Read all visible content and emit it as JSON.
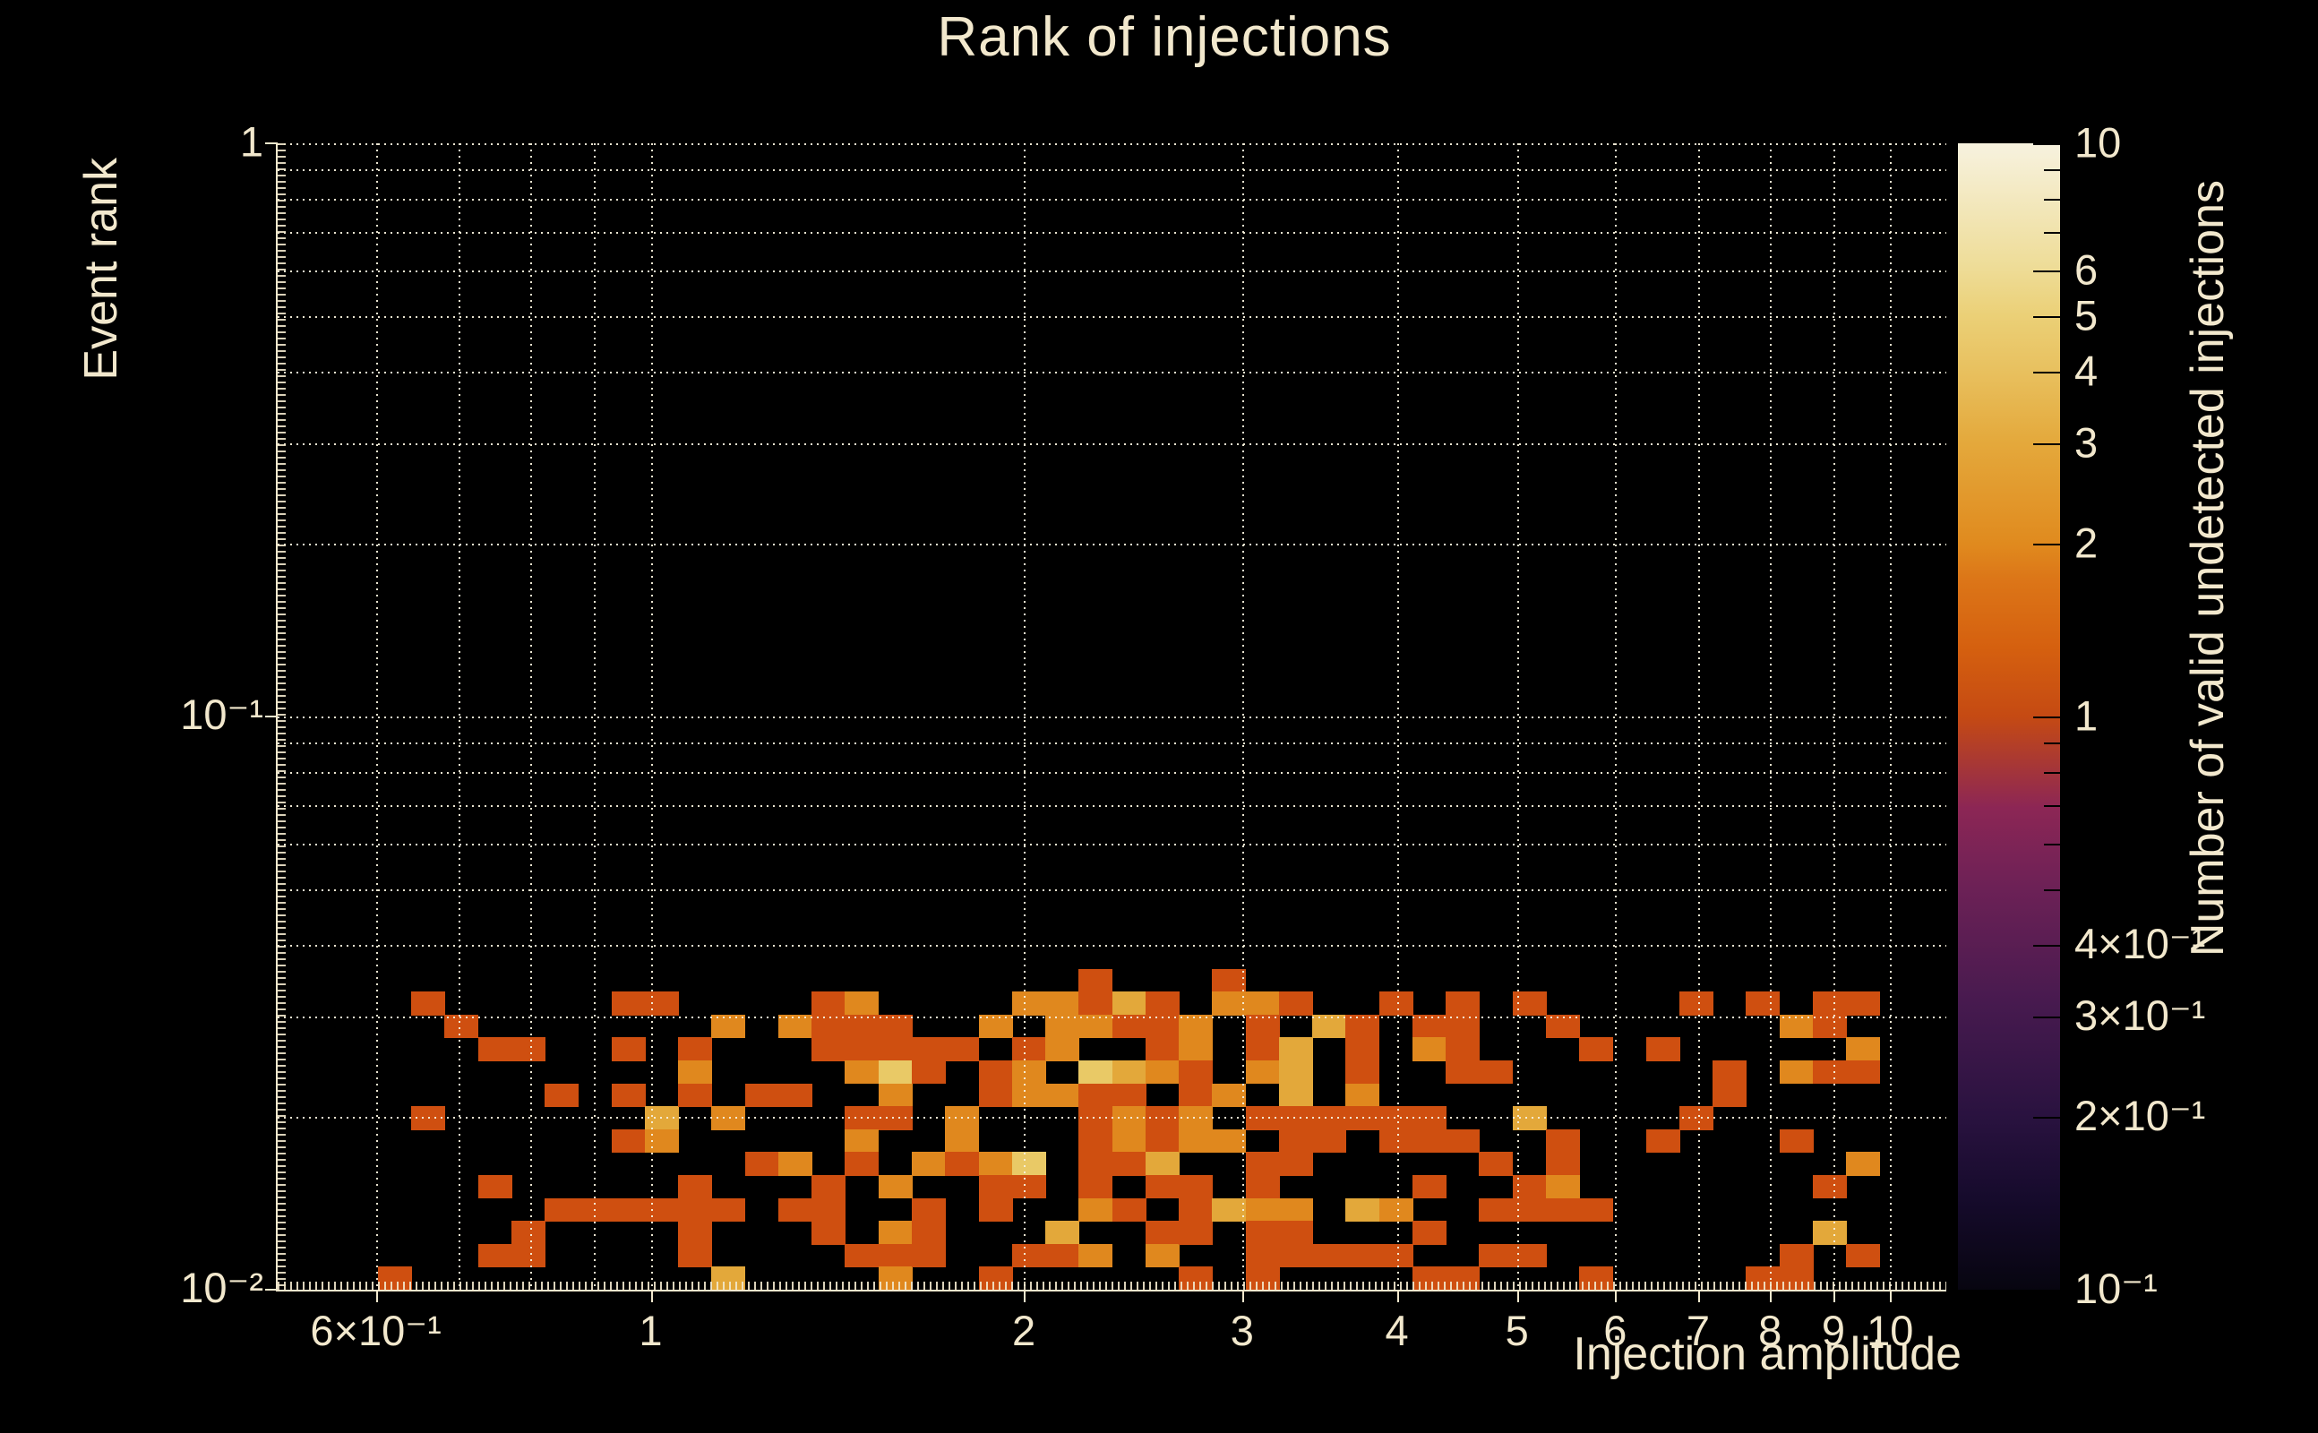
{
  "figure": {
    "bg": "#000000",
    "text_color": "#f2e8cd"
  },
  "chart_data": {
    "type": "heatmap",
    "title": "Rank of injections",
    "xlabel": "Injection amplitude",
    "ylabel": "Event rank",
    "colorbar_label": "Number of valid undetected injections",
    "x_scale": "log",
    "y_scale": "log",
    "z_scale": "log",
    "x_range": [
      0.5,
      11.1
    ],
    "y_range": [
      0.01,
      1.0
    ],
    "z_range": [
      0.1,
      10
    ],
    "grid_bins": 50,
    "grid": "dotted",
    "legend_position": "right-colorbar",
    "x_ticks": [
      {
        "v": 0.6,
        "label": "6×10⁻¹"
      },
      {
        "v": 1,
        "label": "1"
      },
      {
        "v": 2,
        "label": "2"
      },
      {
        "v": 3,
        "label": "3"
      },
      {
        "v": 4,
        "label": "4"
      },
      {
        "v": 5,
        "label": "5"
      },
      {
        "v": 6,
        "label": "6"
      },
      {
        "v": 7,
        "label": "7"
      },
      {
        "v": 8,
        "label": "8"
      },
      {
        "v": 9,
        "label": "9"
      },
      {
        "v": 10,
        "label": "10"
      }
    ],
    "y_ticks": [
      {
        "v": 1,
        "label": "1"
      },
      {
        "v": 0.1,
        "label": "10⁻¹"
      },
      {
        "v": 0.01,
        "label": "10⁻²"
      }
    ],
    "x_gridlines": [
      0.6,
      0.7,
      0.8,
      0.9,
      1,
      2,
      3,
      4,
      5,
      6,
      7,
      8,
      9,
      10
    ],
    "y_gridlines": [
      0.02,
      0.03,
      0.04,
      0.05,
      0.06,
      0.07,
      0.08,
      0.09,
      0.1,
      0.2,
      0.3,
      0.4,
      0.5,
      0.6,
      0.7,
      0.8,
      0.9,
      1
    ],
    "colorbar_ticks": [
      {
        "v": 10,
        "label": "10"
      },
      {
        "v": 6,
        "label": "6"
      },
      {
        "v": 5,
        "label": "5"
      },
      {
        "v": 4,
        "label": "4"
      },
      {
        "v": 3,
        "label": "3"
      },
      {
        "v": 2,
        "label": "2"
      },
      {
        "v": 1,
        "label": "1"
      },
      {
        "v": 0.4,
        "label": "4×10⁻¹"
      },
      {
        "v": 0.3,
        "label": "3×10⁻¹"
      },
      {
        "v": 0.2,
        "label": "2×10⁻¹"
      },
      {
        "v": 0.1,
        "label": "10⁻¹"
      }
    ],
    "colorbar_minor_ticks": [
      9,
      8,
      7,
      0.9,
      0.8,
      0.7,
      0.6,
      0.5
    ],
    "colormap_stops": [
      [
        0.0,
        "#070510"
      ],
      [
        0.08,
        "#160b2c"
      ],
      [
        0.15,
        "#29123f"
      ],
      [
        0.25,
        "#471a4f"
      ],
      [
        0.35,
        "#6c2156"
      ],
      [
        0.42,
        "#8c2655"
      ],
      [
        0.5,
        "#c54a13"
      ],
      [
        0.56,
        "#d5600f"
      ],
      [
        0.62,
        "#dc7618"
      ],
      [
        0.65,
        "#e08a1e"
      ],
      [
        0.74,
        "#e4a93c"
      ],
      [
        0.8,
        "#e8c05e"
      ],
      [
        0.85,
        "#ebd077"
      ],
      [
        0.89,
        "#eedc96"
      ],
      [
        1.0,
        "#f7f2df"
      ]
    ],
    "value_colors": {
      "1": "#cf4f10",
      "2": "#e0881e",
      "3": "#e3a83a",
      "4": "#e9c966"
    },
    "cells_format": [
      "col",
      "row",
      "value"
    ],
    "cells": [
      [
        3,
        0,
        1
      ],
      [
        4,
        12,
        1
      ],
      [
        4,
        7,
        1
      ],
      [
        5,
        11,
        1
      ],
      [
        6,
        10,
        1
      ],
      [
        6,
        4,
        1
      ],
      [
        6,
        1,
        1
      ],
      [
        7,
        10,
        1
      ],
      [
        7,
        2,
        1
      ],
      [
        7,
        1,
        1
      ],
      [
        8,
        8,
        1
      ],
      [
        8,
        3,
        1
      ],
      [
        9,
        3,
        1
      ],
      [
        10,
        12,
        1
      ],
      [
        10,
        10,
        1
      ],
      [
        10,
        8,
        1
      ],
      [
        10,
        6,
        1
      ],
      [
        10,
        3,
        1
      ],
      [
        11,
        12,
        1
      ],
      [
        11,
        7,
        3
      ],
      [
        11,
        6,
        2
      ],
      [
        11,
        3,
        1
      ],
      [
        12,
        10,
        1
      ],
      [
        12,
        9,
        2
      ],
      [
        12,
        8,
        1
      ],
      [
        12,
        4,
        1
      ],
      [
        12,
        3,
        1
      ],
      [
        12,
        2,
        1
      ],
      [
        12,
        1,
        1
      ],
      [
        13,
        11,
        2
      ],
      [
        13,
        7,
        2
      ],
      [
        13,
        3,
        1
      ],
      [
        13,
        0,
        3
      ],
      [
        14,
        8,
        1
      ],
      [
        14,
        5,
        1
      ],
      [
        15,
        11,
        2
      ],
      [
        15,
        8,
        1
      ],
      [
        15,
        5,
        2
      ],
      [
        15,
        3,
        1
      ],
      [
        16,
        12,
        1
      ],
      [
        16,
        11,
        1
      ],
      [
        16,
        10,
        1
      ],
      [
        16,
        4,
        1
      ],
      [
        16,
        3,
        1
      ],
      [
        16,
        2,
        1
      ],
      [
        17,
        12,
        2
      ],
      [
        17,
        11,
        1
      ],
      [
        17,
        10,
        1
      ],
      [
        17,
        9,
        2
      ],
      [
        17,
        7,
        1
      ],
      [
        17,
        6,
        2
      ],
      [
        17,
        5,
        1
      ],
      [
        17,
        1,
        1
      ],
      [
        18,
        11,
        1
      ],
      [
        18,
        10,
        1
      ],
      [
        18,
        9,
        4
      ],
      [
        18,
        8,
        2
      ],
      [
        18,
        7,
        1
      ],
      [
        18,
        4,
        2
      ],
      [
        18,
        2,
        2
      ],
      [
        18,
        1,
        1
      ],
      [
        18,
        0,
        2
      ],
      [
        19,
        10,
        1
      ],
      [
        19,
        9,
        1
      ],
      [
        19,
        5,
        2
      ],
      [
        19,
        3,
        1
      ],
      [
        19,
        2,
        1
      ],
      [
        19,
        1,
        1
      ],
      [
        20,
        10,
        1
      ],
      [
        20,
        7,
        2
      ],
      [
        20,
        6,
        2
      ],
      [
        20,
        5,
        1
      ],
      [
        21,
        11,
        2
      ],
      [
        21,
        9,
        1
      ],
      [
        21,
        8,
        1
      ],
      [
        21,
        5,
        2
      ],
      [
        21,
        4,
        1
      ],
      [
        21,
        3,
        1
      ],
      [
        21,
        0,
        1
      ],
      [
        22,
        12,
        2
      ],
      [
        22,
        10,
        1
      ],
      [
        22,
        9,
        2
      ],
      [
        22,
        8,
        2
      ],
      [
        22,
        5,
        4
      ],
      [
        22,
        4,
        1
      ],
      [
        22,
        1,
        1
      ],
      [
        23,
        12,
        2
      ],
      [
        23,
        11,
        2
      ],
      [
        23,
        10,
        2
      ],
      [
        23,
        8,
        2
      ],
      [
        23,
        2,
        3
      ],
      [
        23,
        1,
        1
      ],
      [
        24,
        13,
        1
      ],
      [
        24,
        12,
        1
      ],
      [
        24,
        11,
        2
      ],
      [
        24,
        9,
        4
      ],
      [
        24,
        8,
        1
      ],
      [
        24,
        7,
        1
      ],
      [
        24,
        6,
        1
      ],
      [
        24,
        5,
        1
      ],
      [
        24,
        4,
        1
      ],
      [
        24,
        3,
        2
      ],
      [
        24,
        1,
        2
      ],
      [
        25,
        12,
        3
      ],
      [
        25,
        11,
        1
      ],
      [
        25,
        9,
        3
      ],
      [
        25,
        8,
        1
      ],
      [
        25,
        7,
        2
      ],
      [
        25,
        6,
        2
      ],
      [
        25,
        5,
        1
      ],
      [
        25,
        3,
        1
      ],
      [
        26,
        12,
        1
      ],
      [
        26,
        11,
        1
      ],
      [
        26,
        10,
        1
      ],
      [
        26,
        9,
        2
      ],
      [
        26,
        7,
        1
      ],
      [
        26,
        6,
        1
      ],
      [
        26,
        5,
        3
      ],
      [
        26,
        4,
        1
      ],
      [
        26,
        2,
        1
      ],
      [
        26,
        1,
        2
      ],
      [
        27,
        11,
        2
      ],
      [
        27,
        10,
        2
      ],
      [
        27,
        9,
        1
      ],
      [
        27,
        8,
        1
      ],
      [
        27,
        7,
        2
      ],
      [
        27,
        6,
        2
      ],
      [
        27,
        4,
        1
      ],
      [
        27,
        3,
        1
      ],
      [
        27,
        2,
        1
      ],
      [
        27,
        0,
        1
      ],
      [
        28,
        13,
        1
      ],
      [
        28,
        12,
        2
      ],
      [
        28,
        8,
        2
      ],
      [
        28,
        6,
        2
      ],
      [
        28,
        3,
        3
      ],
      [
        29,
        12,
        2
      ],
      [
        29,
        11,
        1
      ],
      [
        29,
        10,
        1
      ],
      [
        29,
        9,
        2
      ],
      [
        29,
        7,
        1
      ],
      [
        29,
        5,
        1
      ],
      [
        29,
        4,
        1
      ],
      [
        29,
        3,
        2
      ],
      [
        29,
        2,
        1
      ],
      [
        29,
        1,
        1
      ],
      [
        29,
        0,
        1
      ],
      [
        30,
        12,
        1
      ],
      [
        30,
        10,
        3
      ],
      [
        30,
        9,
        3
      ],
      [
        30,
        8,
        3
      ],
      [
        30,
        7,
        1
      ],
      [
        30,
        6,
        1
      ],
      [
        30,
        5,
        1
      ],
      [
        30,
        3,
        2
      ],
      [
        30,
        2,
        1
      ],
      [
        30,
        1,
        1
      ],
      [
        31,
        11,
        3
      ],
      [
        31,
        7,
        1
      ],
      [
        31,
        6,
        1
      ],
      [
        31,
        1,
        1
      ],
      [
        32,
        11,
        1
      ],
      [
        32,
        10,
        1
      ],
      [
        32,
        9,
        1
      ],
      [
        32,
        8,
        2
      ],
      [
        32,
        7,
        1
      ],
      [
        32,
        3,
        3
      ],
      [
        32,
        1,
        1
      ],
      [
        33,
        12,
        1
      ],
      [
        33,
        7,
        1
      ],
      [
        33,
        6,
        1
      ],
      [
        33,
        3,
        2
      ],
      [
        33,
        1,
        1
      ],
      [
        34,
        11,
        1
      ],
      [
        34,
        10,
        2
      ],
      [
        34,
        7,
        1
      ],
      [
        34,
        6,
        1
      ],
      [
        34,
        4,
        1
      ],
      [
        34,
        2,
        1
      ],
      [
        34,
        0,
        1
      ],
      [
        35,
        12,
        1
      ],
      [
        35,
        11,
        1
      ],
      [
        35,
        10,
        1
      ],
      [
        35,
        9,
        1
      ],
      [
        35,
        6,
        1
      ],
      [
        35,
        0,
        1
      ],
      [
        36,
        9,
        1
      ],
      [
        36,
        5,
        1
      ],
      [
        36,
        3,
        1
      ],
      [
        36,
        1,
        1
      ],
      [
        37,
        12,
        1
      ],
      [
        37,
        7,
        3
      ],
      [
        37,
        4,
        1
      ],
      [
        37,
        3,
        1
      ],
      [
        37,
        1,
        1
      ],
      [
        38,
        11,
        1
      ],
      [
        38,
        6,
        1
      ],
      [
        38,
        5,
        1
      ],
      [
        38,
        4,
        2
      ],
      [
        38,
        3,
        1
      ],
      [
        39,
        10,
        1
      ],
      [
        39,
        3,
        1
      ],
      [
        39,
        0,
        1
      ],
      [
        41,
        10,
        1
      ],
      [
        41,
        6,
        1
      ],
      [
        42,
        12,
        1
      ],
      [
        42,
        7,
        1
      ],
      [
        43,
        9,
        1
      ],
      [
        43,
        8,
        1
      ],
      [
        44,
        12,
        1
      ],
      [
        44,
        0,
        1
      ],
      [
        45,
        11,
        2
      ],
      [
        45,
        9,
        2
      ],
      [
        45,
        6,
        1
      ],
      [
        45,
        1,
        1
      ],
      [
        45,
        0,
        1
      ],
      [
        46,
        12,
        1
      ],
      [
        46,
        11,
        1
      ],
      [
        46,
        9,
        1
      ],
      [
        46,
        4,
        1
      ],
      [
        46,
        2,
        3
      ],
      [
        47,
        12,
        1
      ],
      [
        47,
        10,
        2
      ],
      [
        47,
        9,
        1
      ],
      [
        47,
        5,
        2
      ],
      [
        47,
        1,
        1
      ]
    ]
  }
}
